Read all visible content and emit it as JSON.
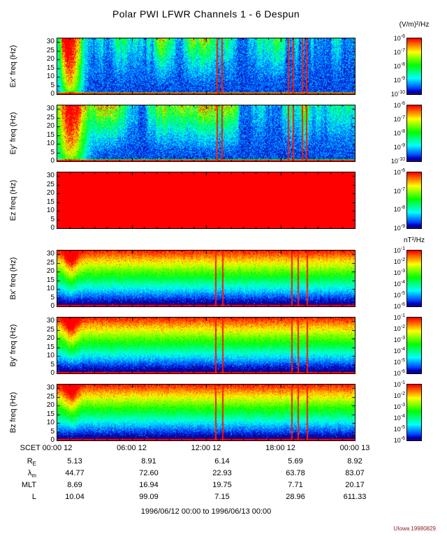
{
  "title": "Polar PWI LFWR Channels 1 - 6 Despun",
  "footer": {
    "time_range": "1996/06/12 00:00 to 1996/06/13 00:00",
    "credit": "UIowa 19980829"
  },
  "colors": {
    "credit": "#8b1a1a",
    "saturated_red": "#ff0000",
    "colormap": "rainbow blue(low) to red(high)"
  },
  "chart_data": {
    "type": "heatmap",
    "description": "Six stacked frequency-time spectrograms (0-32 Hz, 24 hours) from Polar PWI LFWR; three despun electric field channels and three despun magnetic field channels",
    "x_axis": {
      "label": "SCET",
      "ticks": [
        "00:00 12",
        "06:00 12",
        "12:00 12",
        "18:00 12",
        "00:00 13"
      ],
      "range_hours": [
        0,
        24
      ]
    },
    "y_axis": {
      "ticks": [
        0,
        5,
        10,
        15,
        20,
        25,
        30
      ],
      "range_hz": [
        0,
        32
      ]
    },
    "units_electric": "(V/m)²/Hz",
    "units_magnetic": "nT²/Hz",
    "panels": [
      {
        "id": "ex",
        "ylabel": "Ex' freq (Hz)",
        "kind": "electric",
        "colorbar_exponents": [
          "-6",
          "-7",
          "-8",
          "-9",
          "-10"
        ]
      },
      {
        "id": "ey",
        "ylabel": "Ey' freq (Hz)",
        "kind": "electric",
        "colorbar_exponents": [
          "-6",
          "-7",
          "-8",
          "-9",
          "-10"
        ]
      },
      {
        "id": "ez",
        "ylabel": "Ez freq (Hz)",
        "kind": "saturated",
        "colorbar_exponents": [
          "-6",
          "-7",
          "-8",
          "-9"
        ]
      },
      {
        "id": "bx",
        "ylabel": "Bx' freq (Hz)",
        "kind": "magnetic",
        "colorbar_exponents": [
          "-1",
          "-2",
          "-3",
          "-4",
          "-5",
          "-6"
        ]
      },
      {
        "id": "by",
        "ylabel": "By' freq (Hz)",
        "kind": "magnetic",
        "colorbar_exponents": [
          "-1",
          "-2",
          "-3",
          "-4",
          "-5",
          "-6"
        ]
      },
      {
        "id": "bz",
        "ylabel": "Bz freq (Hz)",
        "kind": "magnetic",
        "colorbar_exponents": [
          "-1",
          "-2",
          "-3",
          "-4",
          "-5",
          "-6"
        ]
      }
    ],
    "features": {
      "ez_saturated": "Ez channel is saturated solid red over the whole interval",
      "intense_low_freq_burst_hours": [
        0.4,
        2.2
      ],
      "e_burst_times_hours": [
        12.85,
        13.25,
        18.6,
        19.0,
        19.7,
        20.05
      ],
      "b_burst_times_hours": [
        12.75,
        13.3,
        18.9,
        19.4,
        20.1
      ],
      "magnetic_background": "broadband power decreasing with frequency: red below ~2 Hz, yellow 3-6 Hz, green 6-12 Hz, cyan 12-18 Hz, blue above 20 Hz"
    },
    "ephemeris": {
      "row_labels": [
        {
          "base": "R",
          "sub": "E"
        },
        {
          "base": "λ",
          "sub": "m"
        },
        {
          "base": "MLT",
          "sub": ""
        },
        {
          "base": "L",
          "sub": ""
        }
      ],
      "rows": [
        [
          "5.13",
          "8.91",
          "6.14",
          "5.69",
          "8.92"
        ],
        [
          "44.77",
          "72.60",
          "22.93",
          "63.78",
          "83.07"
        ],
        [
          "8.69",
          "16.94",
          "19.75",
          "7.71",
          "20.17"
        ],
        [
          "10.04",
          "99.09",
          "7.15",
          "28.96",
          "611.33"
        ]
      ]
    }
  }
}
